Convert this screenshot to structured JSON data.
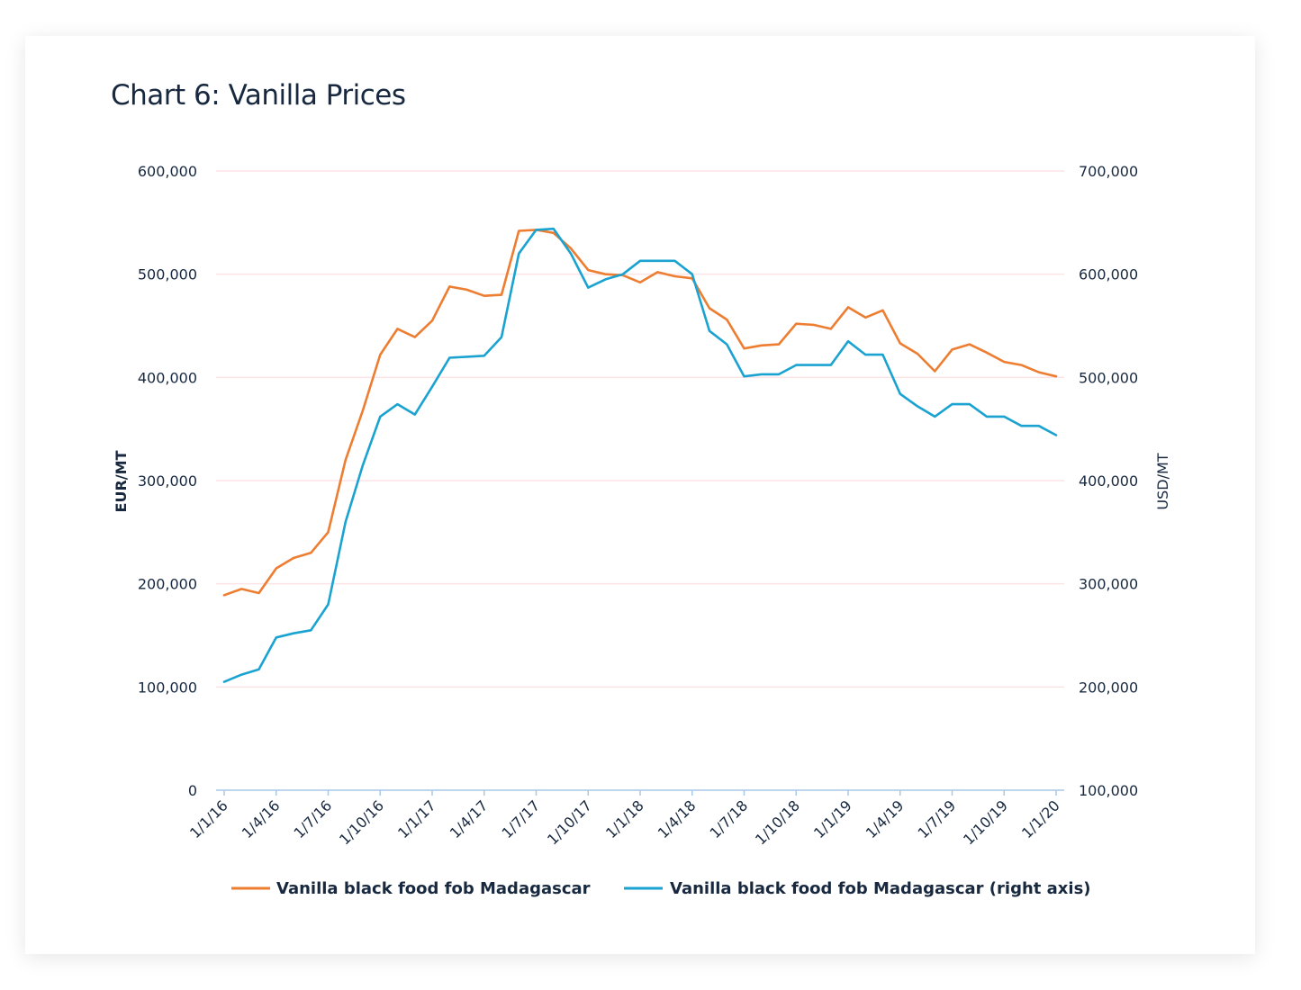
{
  "title": "Chart 6: Vanilla Prices",
  "colors": {
    "eur_series": "#ed7d31",
    "usd_series": "#1aa3d1",
    "gridline": "#fbe3e6",
    "axis": "#a9c8e6",
    "text": "#17283f"
  },
  "chart_data": {
    "type": "line",
    "title": "Chart 6: Vanilla Prices",
    "ylabel": "EUR/MT",
    "y2label": "USD/MT",
    "ylim": [
      0,
      600000
    ],
    "y2lim": [
      100000,
      700000
    ],
    "yticks": [
      "0",
      "100,000",
      "200,000",
      "300,000",
      "400,000",
      "500,000",
      "600,000"
    ],
    "y2ticks": [
      "100,000",
      "200,000",
      "300,000",
      "400,000",
      "500,000",
      "600,000",
      "700,000"
    ],
    "xtick_labels": [
      "1/1/16",
      "1/4/16",
      "1/7/16",
      "1/10/16",
      "1/1/17",
      "1/4/17",
      "1/7/17",
      "1/10/17",
      "1/1/18",
      "1/4/18",
      "1/7/18",
      "1/10/18",
      "1/1/19",
      "1/4/19",
      "1/7/19",
      "1/10/19",
      "1/1/20"
    ],
    "x_months": [
      "Jan 2016",
      "Feb 2016",
      "Mar 2016",
      "Apr 2016",
      "May 2016",
      "Jun 2016",
      "Jul 2016",
      "Aug 2016",
      "Sep 2016",
      "Oct 2016",
      "Nov 2016",
      "Dec 2016",
      "Jan 2017",
      "Feb 2017",
      "Mar 2017",
      "Apr 2017",
      "May 2017",
      "Jun 2017",
      "Jul 2017",
      "Aug 2017",
      "Sep 2017",
      "Oct 2017",
      "Nov 2017",
      "Dec 2017",
      "Jan 2018",
      "Feb 2018",
      "Mar 2018",
      "Apr 2018",
      "May 2018",
      "Jun 2018",
      "Jul 2018",
      "Aug 2018",
      "Sep 2018",
      "Oct 2018",
      "Nov 2018",
      "Dec 2018",
      "Jan 2019",
      "Feb 2019",
      "Mar 2019",
      "Apr 2019",
      "May 2019",
      "Jun 2019",
      "Jul 2019",
      "Aug 2019",
      "Sep 2019",
      "Oct 2019",
      "Nov 2019",
      "Dec 2019",
      "Jan 2020"
    ],
    "grid": true,
    "legend_position": "bottom",
    "series": [
      {
        "name": "Vanilla black food fob Madagascar",
        "axis": "left",
        "values": [
          189000,
          195000,
          191000,
          215000,
          225000,
          230000,
          250000,
          320000,
          368000,
          422000,
          447000,
          439000,
          455000,
          488000,
          485000,
          479000,
          480000,
          542000,
          543000,
          540000,
          525000,
          504000,
          500000,
          499000,
          492000,
          502000,
          498000,
          496000,
          467000,
          456000,
          428000,
          431000,
          432000,
          452000,
          451000,
          447000,
          468000,
          458000,
          465000,
          433000,
          423000,
          406000,
          427000,
          432000,
          424000,
          415000,
          412000,
          405000,
          401000
        ]
      },
      {
        "name": "Vanilla black food fob Madagascar (right axis)",
        "axis": "right",
        "values": [
          205000,
          212000,
          217000,
          248000,
          252000,
          255000,
          280000,
          360000,
          415000,
          462000,
          474000,
          464000,
          491000,
          519000,
          520000,
          521000,
          539000,
          620000,
          643000,
          644000,
          620000,
          587000,
          595000,
          600000,
          613000,
          613000,
          613000,
          600000,
          545000,
          532000,
          501000,
          503000,
          503000,
          512000,
          512000,
          512000,
          535000,
          522000,
          522000,
          484000,
          472000,
          462000,
          474000,
          474000,
          462000,
          462000,
          453000,
          453000,
          444000
        ]
      }
    ]
  }
}
